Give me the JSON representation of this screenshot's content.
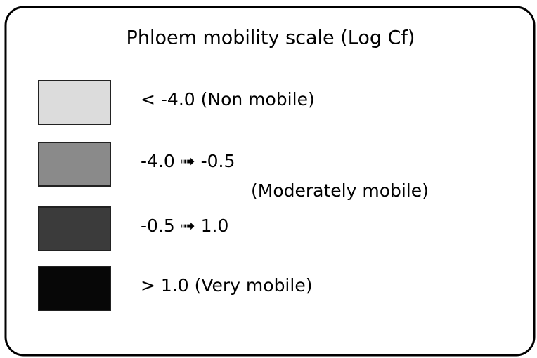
{
  "title": "Phloem mobility scale (Log Cf)",
  "items": [
    {
      "label": "< -4.0 (Non mobile)",
      "color": "#dcdcdc"
    },
    {
      "label": "-4.0 ➟ -0.5",
      "note": "(Moderately mobile)",
      "color": "#8a8a8a"
    },
    {
      "label": "-0.5 ➟  1.0",
      "color": "#3b3b3b"
    },
    {
      "label": "> 1.0 (Very mobile)",
      "color": "#070707"
    }
  ]
}
